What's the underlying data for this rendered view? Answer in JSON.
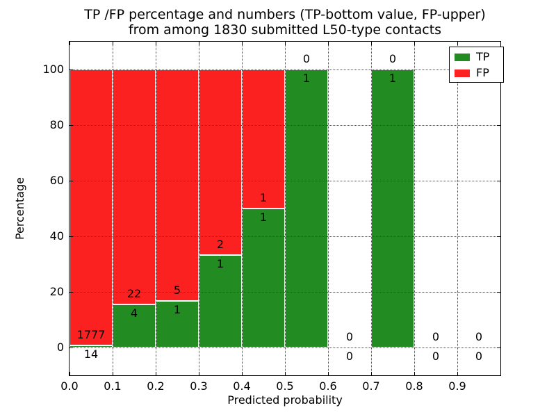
{
  "title": {
    "line1": "TP /FP percentage and numbers (TP-bottom value, FP-upper)",
    "line2": "from among 1830 submitted L50-type contacts"
  },
  "axes": {
    "xlabel": "Predicted probability",
    "ylabel": "Percentage",
    "xlim": [
      0.0,
      1.0
    ],
    "ylim": [
      -10,
      110
    ],
    "x_tick_values": [
      0.0,
      0.1,
      0.2,
      0.3,
      0.4,
      0.5,
      0.6,
      0.7,
      0.8,
      0.9
    ],
    "x_tick_labels": [
      "0.0",
      "0.1",
      "0.2",
      "0.3",
      "0.4",
      "0.5",
      "0.6",
      "0.7",
      "0.8",
      "0.9"
    ],
    "y_tick_values": [
      0,
      20,
      40,
      60,
      80,
      100
    ],
    "y_tick_labels": [
      "0",
      "20",
      "40",
      "60",
      "80",
      "100"
    ],
    "grid_style": "dotted"
  },
  "legend": {
    "position": "upper-right",
    "items": [
      {
        "label": "TP",
        "color": "#228b22"
      },
      {
        "label": "FP",
        "color": "#fc2121"
      }
    ]
  },
  "colors": {
    "tp_green": "#228b22",
    "fp_red": "#fc2121",
    "background": "#ffffff",
    "text": "#000000"
  },
  "chart_data": {
    "type": "bar",
    "stacked": true,
    "normalized_to_percent": true,
    "title": "TP /FP percentage and numbers (TP-bottom value, FP-upper) from among 1830 submitted L50-type contacts",
    "xlabel": "Predicted probability",
    "ylabel": "Percentage",
    "xlim": [
      0.0,
      1.0
    ],
    "ylim": [
      -10,
      110
    ],
    "total_contacts": 1830,
    "bin_width": 0.1,
    "bin_starts": [
      0.0,
      0.1,
      0.2,
      0.3,
      0.4,
      0.5,
      0.6,
      0.7,
      0.8,
      0.9
    ],
    "series": [
      {
        "name": "TP",
        "color": "#228b22",
        "counts": [
          14,
          4,
          1,
          1,
          1,
          1,
          0,
          1,
          0,
          0
        ]
      },
      {
        "name": "FP",
        "color": "#fc2121",
        "counts": [
          1777,
          22,
          5,
          2,
          1,
          0,
          0,
          0,
          0,
          0
        ]
      }
    ],
    "tp_percent_per_bin": [
      0.78,
      15.38,
      16.67,
      33.33,
      50.0,
      100.0,
      0.0,
      100.0,
      0.0,
      0.0
    ],
    "label_convention": "TP count printed below the TP/FP boundary, FP count printed above it"
  }
}
